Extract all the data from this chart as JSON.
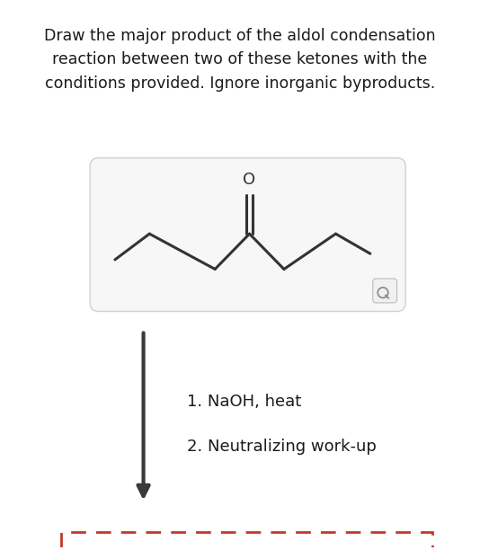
{
  "title_lines": [
    "Draw the major product of the aldol condensation",
    "reaction between two of these ketones with the",
    "conditions provided. Ignore inorganic byproducts."
  ],
  "title_fontsize": 12.5,
  "bg_color": "#ffffff",
  "box_facecolor": "#f7f7f7",
  "box_edgecolor": "#d0d0d0",
  "molecule_color": "#333333",
  "molecule_lw": 2.2,
  "arrow_color": "#3a3a3a",
  "arrow_lw": 3.0,
  "conditions_text1": "1. NaOH, heat",
  "conditions_text2": "2. Neutralizing work-up",
  "conditions_fontsize": 13.0,
  "dashed_box_color": "#c0392b",
  "text_color": "#1a1a1a"
}
